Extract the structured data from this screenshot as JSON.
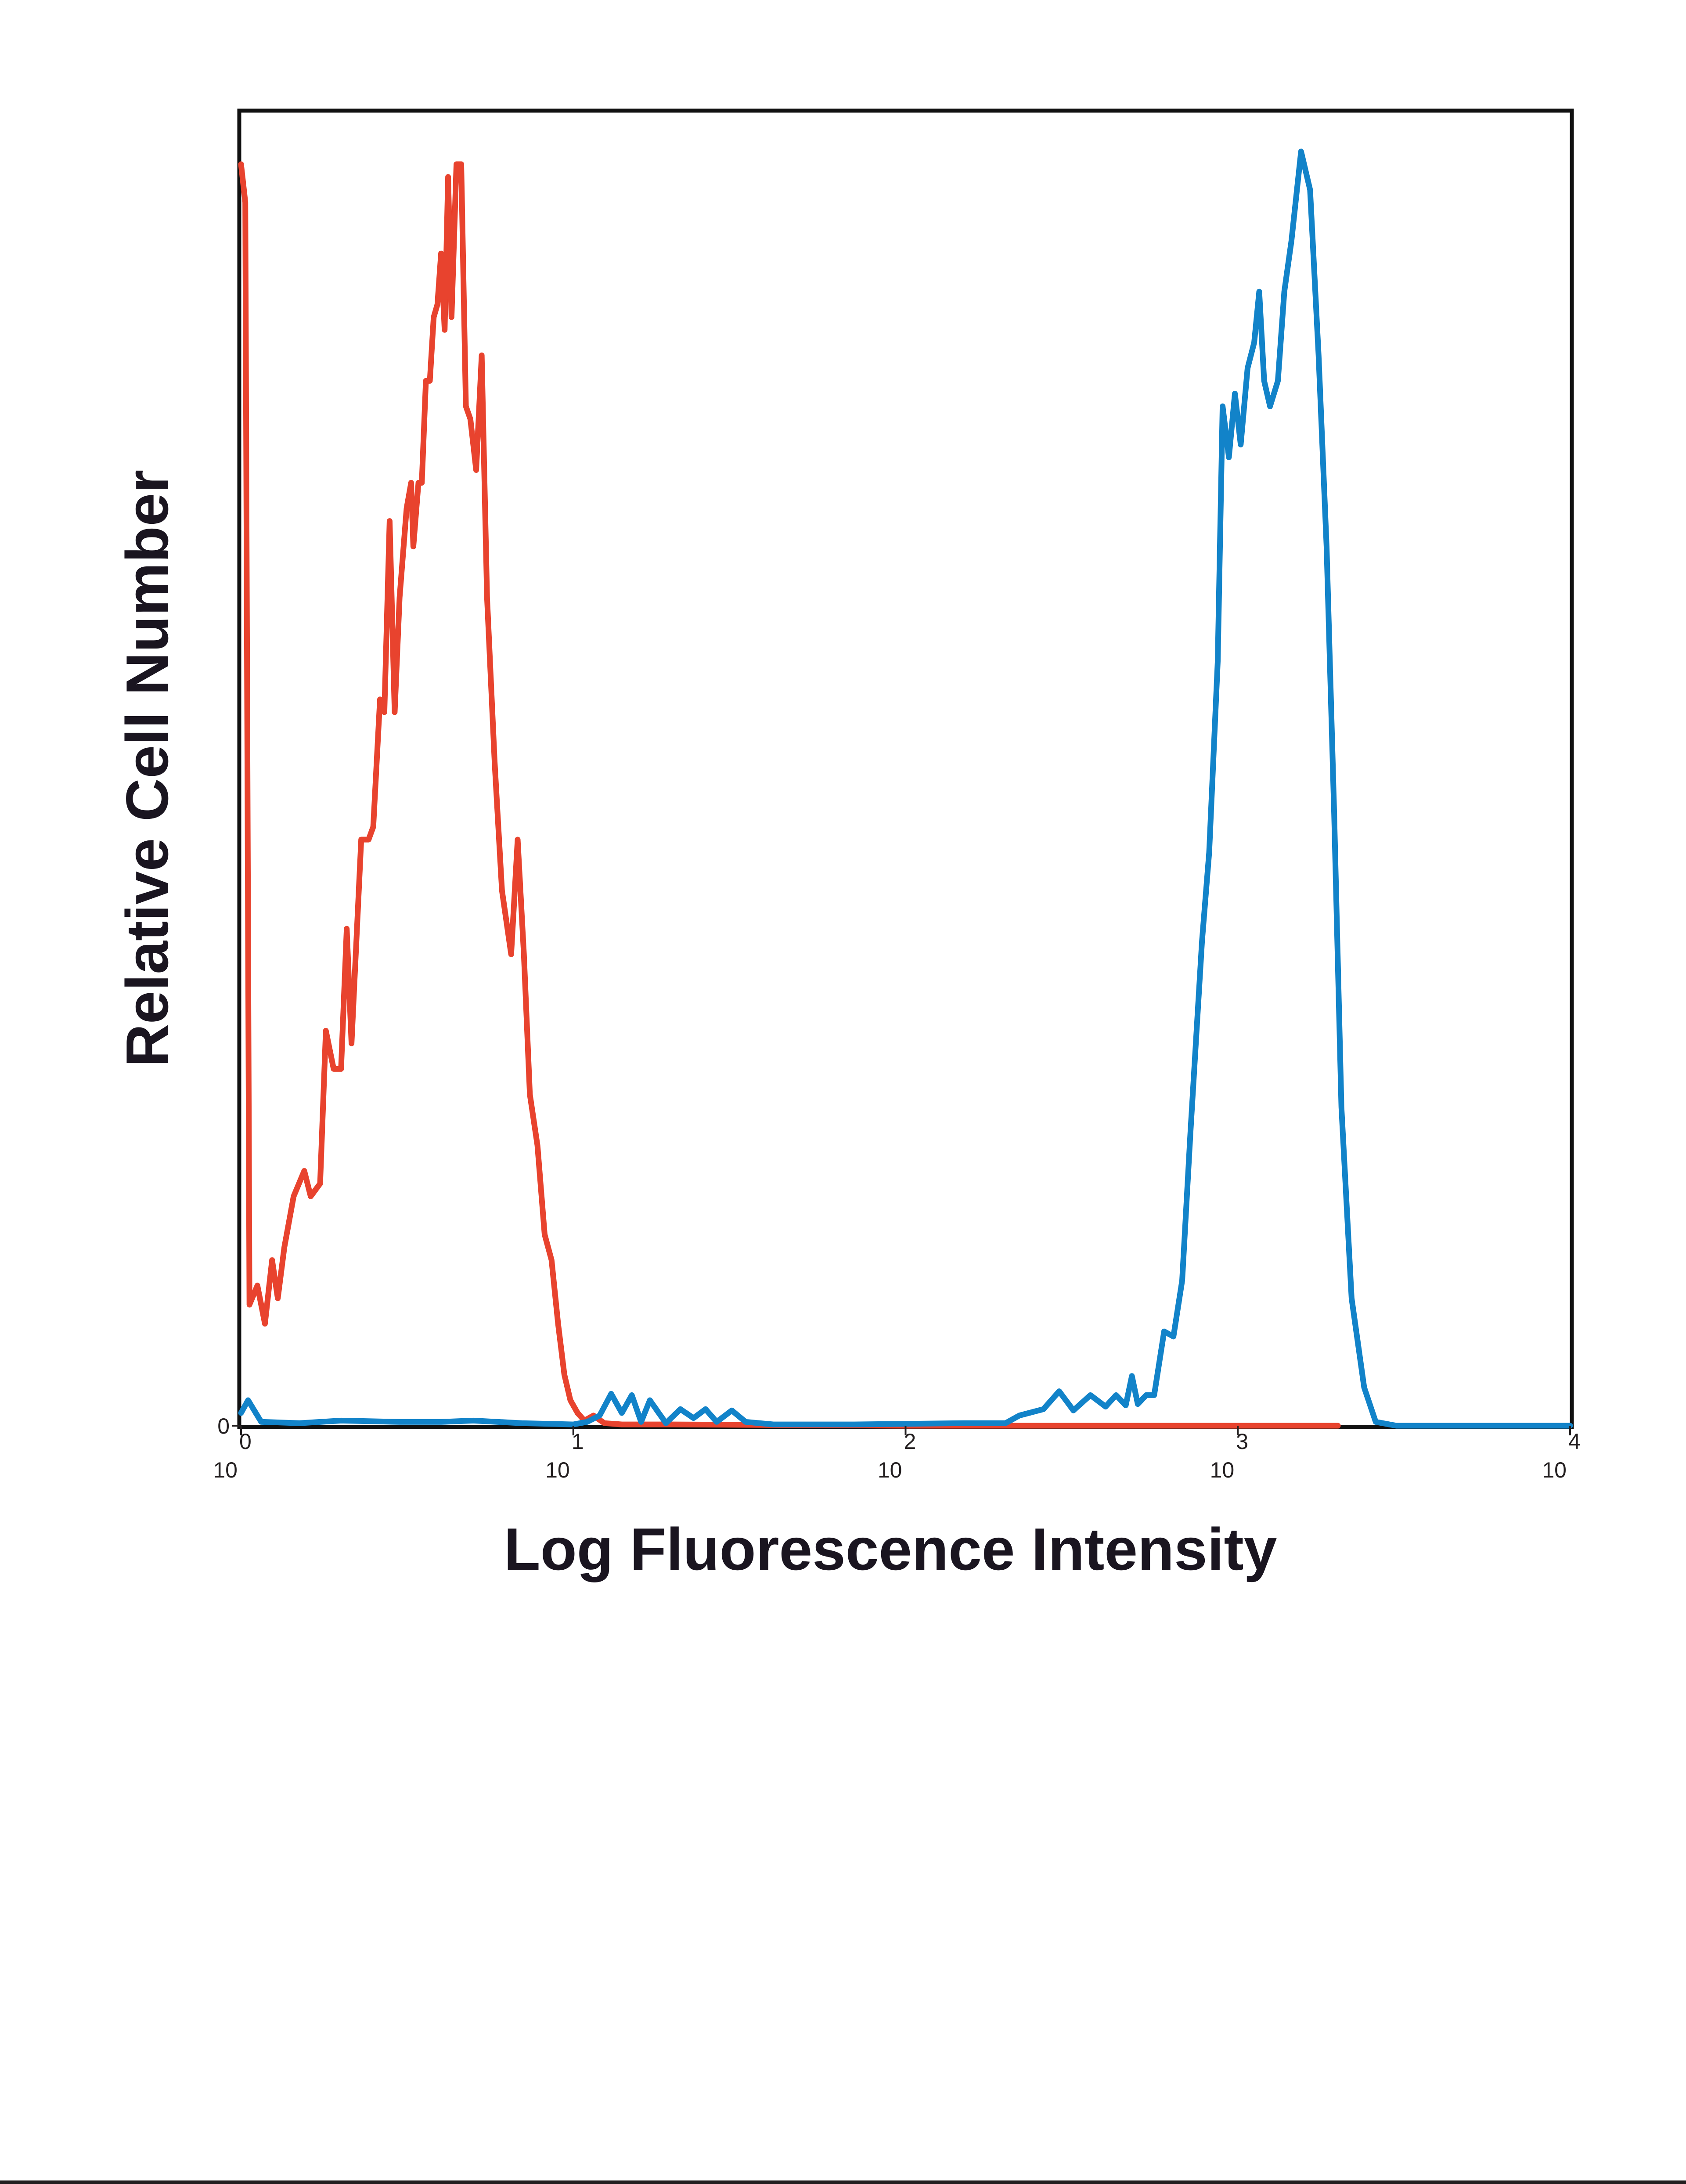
{
  "chart_data": {
    "type": "line",
    "xlabel": "Log Fluorescence Intensity",
    "ylabel": "Relative Cell Number",
    "x_scale": "log",
    "xlim": [
      1,
      10000
    ],
    "ylim": [
      0,
      100
    ],
    "grid": false,
    "x_ticks": [
      {
        "base": "10",
        "exp": "0",
        "value": 1
      },
      {
        "base": "10",
        "exp": "1",
        "value": 10
      },
      {
        "base": "10",
        "exp": "2",
        "value": 100
      },
      {
        "base": "10",
        "exp": "3",
        "value": 1000
      },
      {
        "base": "10",
        "exp": "4",
        "value": 10000
      }
    ],
    "y_ticks": [
      {
        "label": "0",
        "value": 0
      }
    ],
    "series": [
      {
        "color": "#e8432e",
        "points": [
          [
            1.0,
            99
          ],
          [
            1.03,
            96
          ],
          [
            1.06,
            9.5
          ],
          [
            1.12,
            11
          ],
          [
            1.18,
            8
          ],
          [
            1.24,
            13
          ],
          [
            1.29,
            10
          ],
          [
            1.35,
            14
          ],
          [
            1.44,
            18
          ],
          [
            1.55,
            20
          ],
          [
            1.62,
            18
          ],
          [
            1.73,
            19
          ],
          [
            1.8,
            31
          ],
          [
            1.9,
            28
          ],
          [
            2.0,
            28
          ],
          [
            2.08,
            39
          ],
          [
            2.15,
            30
          ],
          [
            2.3,
            46
          ],
          [
            2.42,
            46
          ],
          [
            2.5,
            47
          ],
          [
            2.62,
            57
          ],
          [
            2.7,
            56
          ],
          [
            2.8,
            71
          ],
          [
            2.9,
            56
          ],
          [
            3.0,
            65
          ],
          [
            3.15,
            72
          ],
          [
            3.25,
            74
          ],
          [
            3.3,
            69
          ],
          [
            3.42,
            74
          ],
          [
            3.5,
            74
          ],
          [
            3.6,
            82
          ],
          [
            3.7,
            82
          ],
          [
            3.8,
            87
          ],
          [
            3.9,
            88
          ],
          [
            4.0,
            92
          ],
          [
            4.1,
            86
          ],
          [
            4.2,
            98
          ],
          [
            4.3,
            87
          ],
          [
            4.45,
            99
          ],
          [
            4.6,
            99
          ],
          [
            4.75,
            80
          ],
          [
            4.9,
            79
          ],
          [
            5.1,
            75
          ],
          [
            5.3,
            84
          ],
          [
            5.5,
            65
          ],
          [
            5.8,
            52
          ],
          [
            6.1,
            42
          ],
          [
            6.5,
            37
          ],
          [
            6.8,
            46
          ],
          [
            7.1,
            37
          ],
          [
            7.4,
            26
          ],
          [
            7.8,
            22
          ],
          [
            8.2,
            15
          ],
          [
            8.6,
            13
          ],
          [
            9.0,
            8
          ],
          [
            9.4,
            4
          ],
          [
            9.8,
            2
          ],
          [
            10.3,
            1
          ],
          [
            10.8,
            0.4
          ],
          [
            11.5,
            0.8
          ],
          [
            12.4,
            0.2
          ],
          [
            14,
            0.1
          ],
          [
            20,
            0.1
          ],
          [
            100,
            0
          ],
          [
            1000,
            0
          ],
          [
            2000,
            0
          ]
        ]
      },
      {
        "color": "#1283c9",
        "points": [
          [
            1.0,
            1
          ],
          [
            1.05,
            2
          ],
          [
            1.15,
            0.3
          ],
          [
            1.5,
            0.2
          ],
          [
            2.0,
            0.4
          ],
          [
            3.0,
            0.3
          ],
          [
            4.0,
            0.3
          ],
          [
            5.0,
            0.4
          ],
          [
            7.0,
            0.2
          ],
          [
            10,
            0.1
          ],
          [
            11,
            0.3
          ],
          [
            12,
            0.8
          ],
          [
            13,
            2.5
          ],
          [
            14,
            1
          ],
          [
            15,
            2.4
          ],
          [
            16,
            0.3
          ],
          [
            17,
            2
          ],
          [
            19,
            0.2
          ],
          [
            21,
            1.3
          ],
          [
            23,
            0.6
          ],
          [
            25,
            1.3
          ],
          [
            27,
            0.3
          ],
          [
            30,
            1.2
          ],
          [
            33,
            0.3
          ],
          [
            40,
            0.1
          ],
          [
            70,
            0.1
          ],
          [
            150,
            0.2
          ],
          [
            200,
            0.2
          ],
          [
            220,
            0.8
          ],
          [
            260,
            1.3
          ],
          [
            290,
            2.7
          ],
          [
            320,
            1.2
          ],
          [
            360,
            2.4
          ],
          [
            400,
            1.5
          ],
          [
            430,
            2.4
          ],
          [
            460,
            1.6
          ],
          [
            480,
            3.9
          ],
          [
            500,
            1.7
          ],
          [
            530,
            2.4
          ],
          [
            560,
            2.4
          ],
          [
            600,
            7.4
          ],
          [
            640,
            7
          ],
          [
            680,
            11.4
          ],
          [
            720,
            23
          ],
          [
            780,
            38
          ],
          [
            820,
            45
          ],
          [
            870,
            60
          ],
          [
            900,
            80
          ],
          [
            940,
            76
          ],
          [
            980,
            81
          ],
          [
            1020,
            77
          ],
          [
            1070,
            83
          ],
          [
            1120,
            85
          ],
          [
            1160,
            89
          ],
          [
            1200,
            82
          ],
          [
            1250,
            80
          ],
          [
            1320,
            82
          ],
          [
            1380,
            89
          ],
          [
            1450,
            93
          ],
          [
            1550,
            100
          ],
          [
            1650,
            97
          ],
          [
            1750,
            84
          ],
          [
            1850,
            69
          ],
          [
            1950,
            48
          ],
          [
            2050,
            25
          ],
          [
            2200,
            10
          ],
          [
            2400,
            3
          ],
          [
            2600,
            0.3
          ],
          [
            3000,
            0
          ],
          [
            10000,
            0
          ]
        ]
      }
    ]
  }
}
